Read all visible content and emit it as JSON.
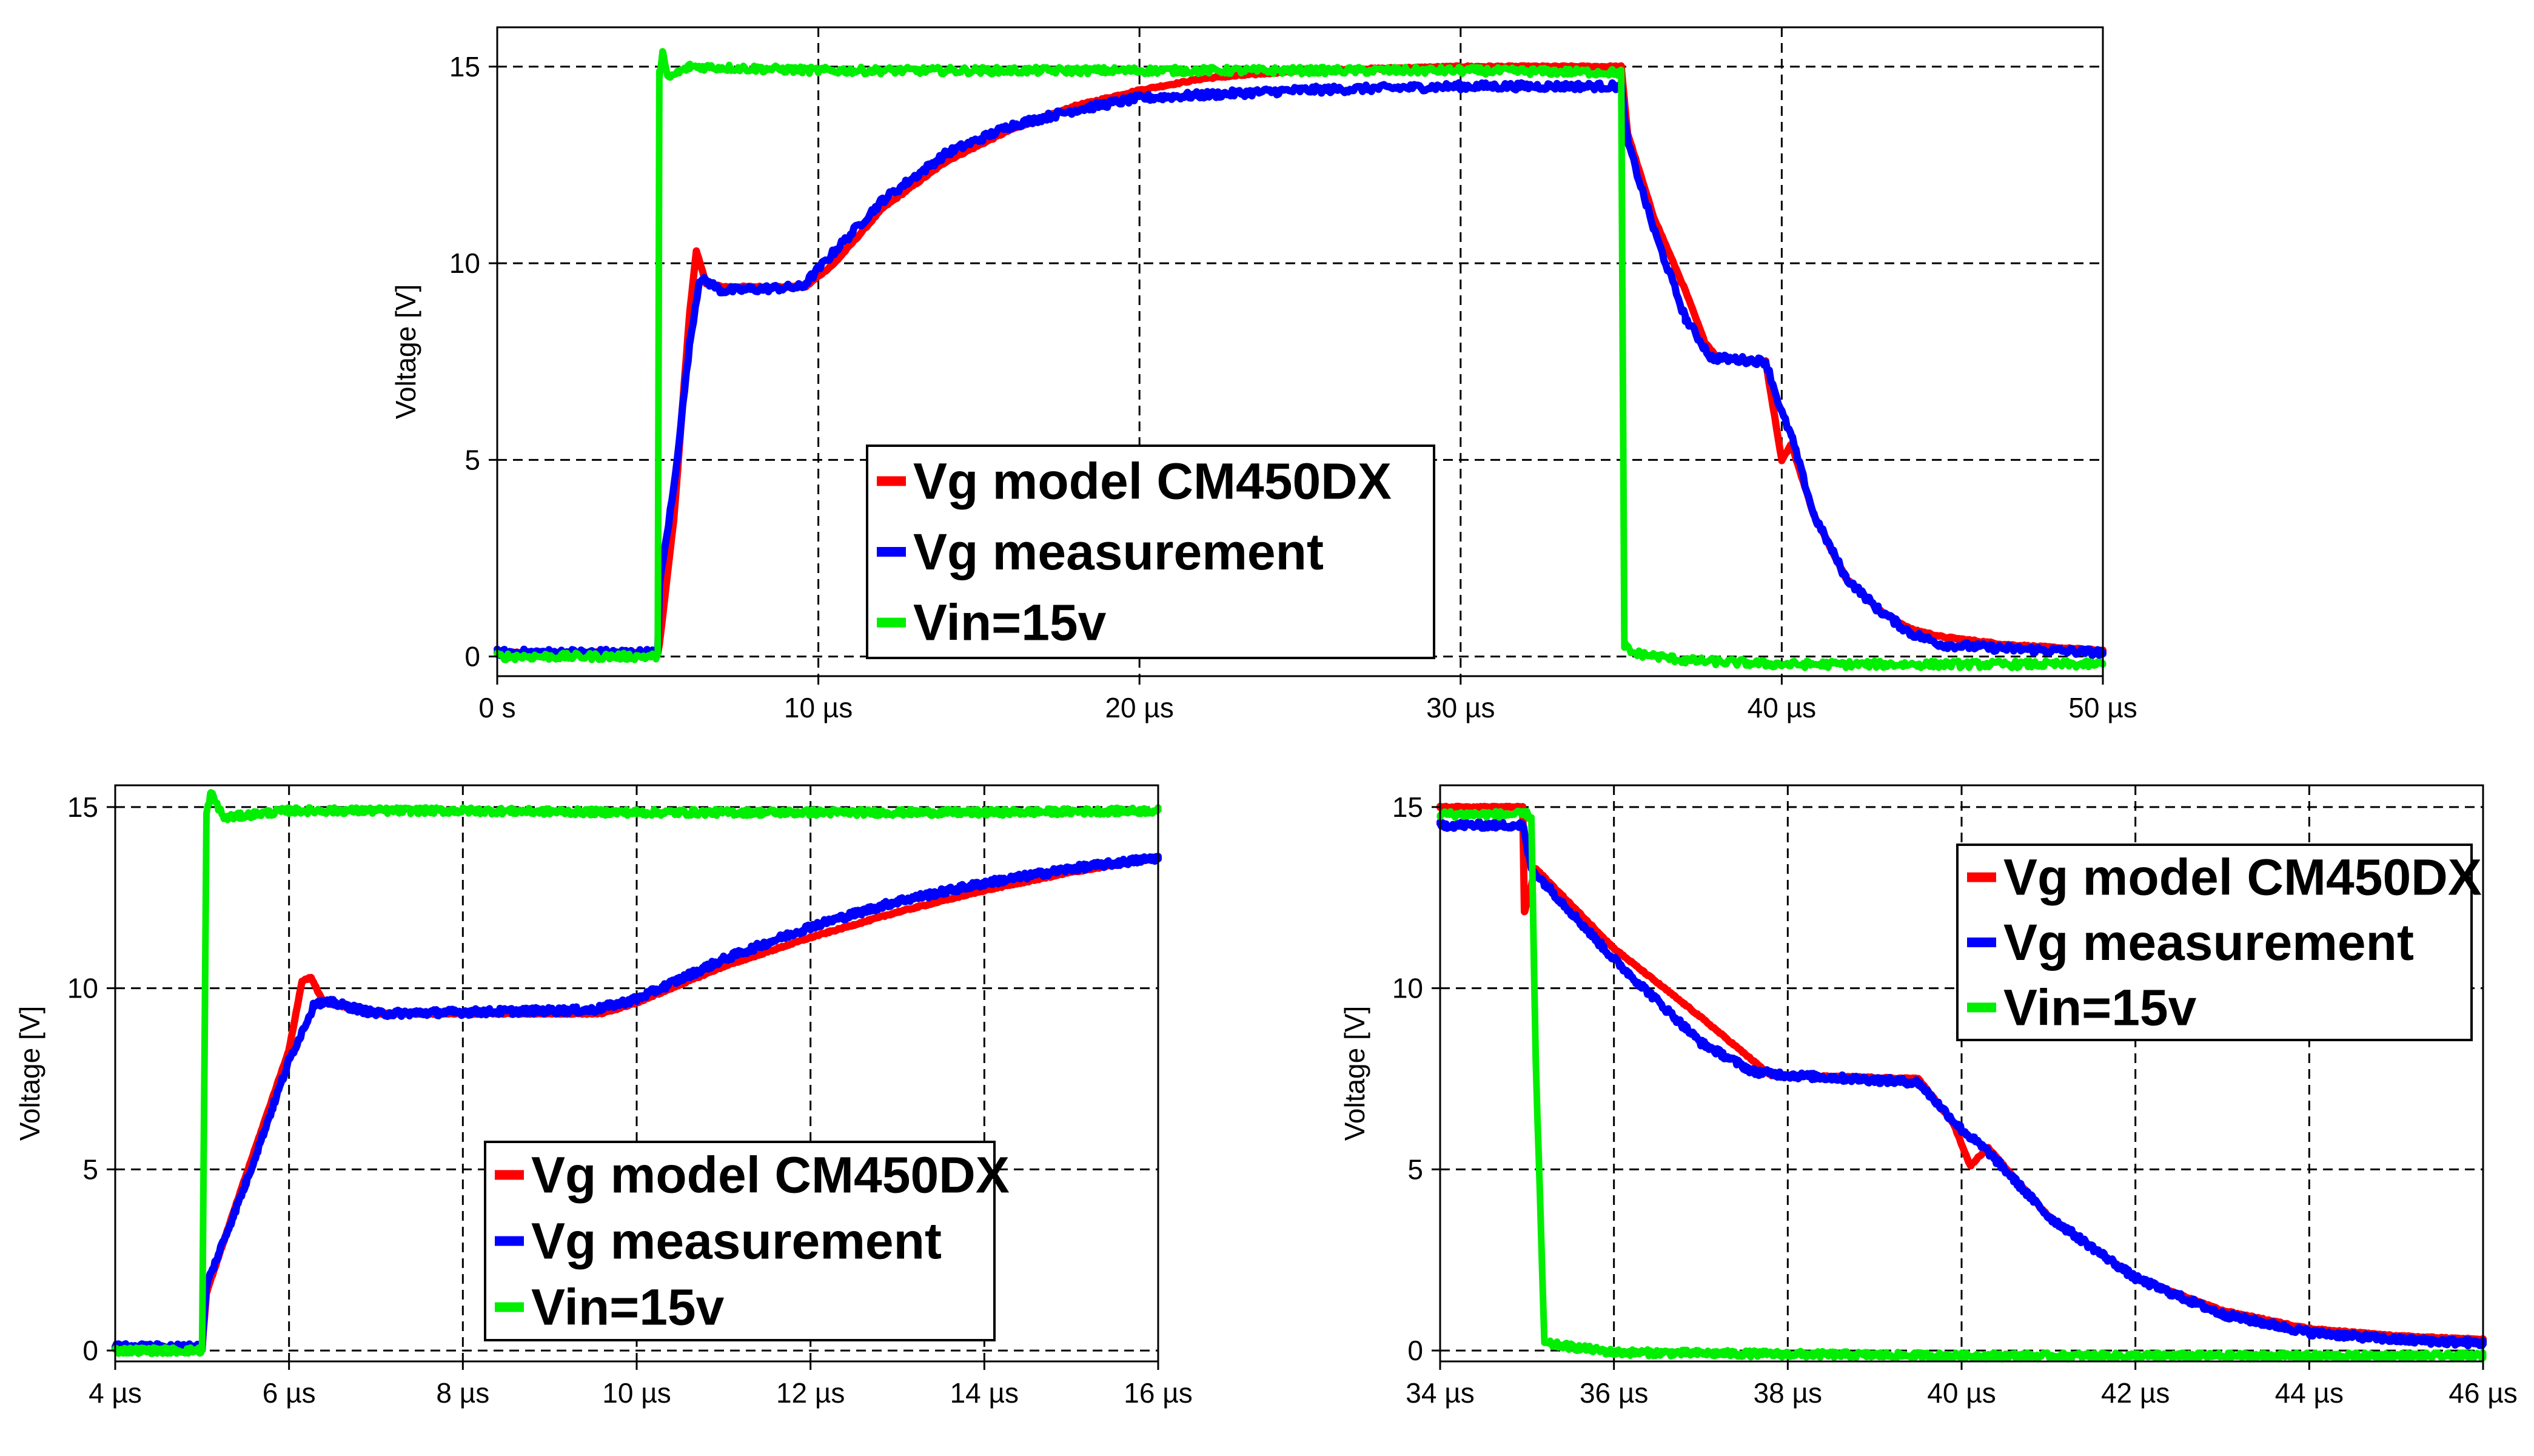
{
  "chart_data": [
    {
      "id": "top",
      "type": "line",
      "title": "",
      "xlabel": "",
      "ylabel": "Voltage [V]",
      "xlim": [
        0,
        50
      ],
      "ylim": [
        -0.5,
        16
      ],
      "xticks": [
        0,
        10,
        20,
        30,
        40,
        50
      ],
      "xtick_labels": [
        "0 s",
        "10 µs",
        "20 µs",
        "30 µs",
        "40 µs",
        "50 µs"
      ],
      "yticks": [
        0,
        5,
        10,
        15
      ],
      "ytick_labels": [
        "0",
        "5",
        "10",
        "15"
      ],
      "grid": true,
      "legend_position": "bottom-center",
      "series": [
        {
          "name": "Vg model CM450DX",
          "color": "#ff0000",
          "points": [
            [
              0,
              0.1
            ],
            [
              5,
              0.1
            ],
            [
              5.05,
              0.3
            ],
            [
              5.5,
              3.5
            ],
            [
              6.0,
              8.8
            ],
            [
              6.2,
              10.3
            ],
            [
              6.5,
              9.5
            ],
            [
              7,
              9.4
            ],
            [
              9.6,
              9.4
            ],
            [
              10.5,
              10.0
            ],
            [
              12,
              11.4
            ],
            [
              14,
              12.6
            ],
            [
              16,
              13.4
            ],
            [
              18,
              14.0
            ],
            [
              20,
              14.4
            ],
            [
              22,
              14.7
            ],
            [
              25,
              14.9
            ],
            [
              30,
              15.0
            ],
            [
              35,
              15.0
            ],
            [
              35.2,
              13.3
            ],
            [
              36,
              11.2
            ],
            [
              37,
              9.3
            ],
            [
              37.6,
              8.0
            ],
            [
              38,
              7.6
            ],
            [
              39.5,
              7.5
            ],
            [
              40,
              5.0
            ],
            [
              40.3,
              5.4
            ],
            [
              41,
              3.6
            ],
            [
              42,
              2.0
            ],
            [
              43,
              1.2
            ],
            [
              44,
              0.7
            ],
            [
              45,
              0.5
            ],
            [
              47,
              0.3
            ],
            [
              50,
              0.15
            ]
          ]
        },
        {
          "name": "Vg measurement",
          "color": "#0000ff",
          "points": [
            [
              0,
              0.1
            ],
            [
              5,
              0.1
            ],
            [
              5.05,
              1.8
            ],
            [
              5.5,
              4.3
            ],
            [
              6.0,
              8.0
            ],
            [
              6.3,
              9.6
            ],
            [
              6.6,
              9.5
            ],
            [
              7,
              9.3
            ],
            [
              9.5,
              9.4
            ],
            [
              10.5,
              10.3
            ],
            [
              12,
              11.6
            ],
            [
              14,
              12.8
            ],
            [
              16,
              13.5
            ],
            [
              18,
              13.9
            ],
            [
              20,
              14.2
            ],
            [
              25,
              14.4
            ],
            [
              30,
              14.5
            ],
            [
              35,
              14.5
            ],
            [
              35.2,
              13.1
            ],
            [
              36,
              10.9
            ],
            [
              37,
              8.6
            ],
            [
              37.8,
              7.6
            ],
            [
              39.5,
              7.5
            ],
            [
              40,
              6.2
            ],
            [
              40.3,
              5.6
            ],
            [
              41,
              3.6
            ],
            [
              42,
              2.0
            ],
            [
              43,
              1.2
            ],
            [
              44,
              0.6
            ],
            [
              45,
              0.3
            ],
            [
              47,
              0.2
            ],
            [
              50,
              0.1
            ]
          ]
        },
        {
          "name": "Vin=15v",
          "color": "#00ee00",
          "points": [
            [
              0,
              0
            ],
            [
              5,
              0
            ],
            [
              5.05,
              14.8
            ],
            [
              5.15,
              15.4
            ],
            [
              5.3,
              14.7
            ],
            [
              6,
              15.0
            ],
            [
              10,
              14.9
            ],
            [
              20,
              14.9
            ],
            [
              30,
              14.9
            ],
            [
              35,
              14.85
            ],
            [
              35.1,
              0.3
            ],
            [
              35.3,
              0.1
            ],
            [
              37,
              -0.1
            ],
            [
              40,
              -0.2
            ],
            [
              45,
              -0.2
            ],
            [
              50,
              -0.2
            ]
          ]
        }
      ]
    },
    {
      "id": "bottom-left",
      "type": "line",
      "title": "",
      "xlabel": "",
      "ylabel": "Voltage [V]",
      "xlim": [
        4,
        16
      ],
      "ylim": [
        -0.3,
        15.6
      ],
      "xticks": [
        4,
        6,
        8,
        10,
        12,
        14,
        16
      ],
      "xtick_labels": [
        "4 µs",
        "6 µs",
        "8 µs",
        "10 µs",
        "12 µs",
        "14 µs",
        "16 µs"
      ],
      "yticks": [
        0,
        5,
        10,
        15
      ],
      "ytick_labels": [
        "0",
        "5",
        "10",
        "15"
      ],
      "grid": true,
      "legend_position": "bottom-right",
      "series": [
        {
          "name": "Vg model CM450DX",
          "color": "#ff0000",
          "points": [
            [
              4,
              0.1
            ],
            [
              5,
              0.1
            ],
            [
              5.05,
              1.6
            ],
            [
              5.5,
              4.8
            ],
            [
              6,
              8.3
            ],
            [
              6.15,
              10.2
            ],
            [
              6.25,
              10.3
            ],
            [
              6.4,
              9.6
            ],
            [
              7,
              9.3
            ],
            [
              9.6,
              9.3
            ],
            [
              10,
              9.6
            ],
            [
              11,
              10.6
            ],
            [
              12,
              11.4
            ],
            [
              13,
              12.1
            ],
            [
              14,
              12.7
            ],
            [
              15,
              13.2
            ],
            [
              16,
              13.6
            ]
          ]
        },
        {
          "name": "Vg measurement",
          "color": "#0000ff",
          "points": [
            [
              4,
              0.1
            ],
            [
              5,
              0.1
            ],
            [
              5.05,
              1.8
            ],
            [
              5.5,
              4.6
            ],
            [
              6,
              8.0
            ],
            [
              6.3,
              9.6
            ],
            [
              6.5,
              9.6
            ],
            [
              7,
              9.3
            ],
            [
              9.5,
              9.4
            ],
            [
              10,
              9.7
            ],
            [
              11,
              10.8
            ],
            [
              12,
              11.7
            ],
            [
              13,
              12.4
            ],
            [
              14,
              12.9
            ],
            [
              15,
              13.3
            ],
            [
              16,
              13.6
            ]
          ]
        },
        {
          "name": "Vin=15v",
          "color": "#00ee00",
          "points": [
            [
              4,
              0
            ],
            [
              5,
              0
            ],
            [
              5.05,
              14.8
            ],
            [
              5.1,
              15.4
            ],
            [
              5.25,
              14.7
            ],
            [
              5.6,
              14.8
            ],
            [
              6,
              14.9
            ],
            [
              8,
              14.9
            ],
            [
              10,
              14.85
            ],
            [
              12,
              14.85
            ],
            [
              14,
              14.85
            ],
            [
              16,
              14.9
            ]
          ]
        }
      ]
    },
    {
      "id": "bottom-right",
      "type": "line",
      "title": "",
      "xlabel": "",
      "ylabel": "Voltage [V]",
      "xlim": [
        34,
        46
      ],
      "ylim": [
        -0.3,
        15.6
      ],
      "xticks": [
        34,
        36,
        38,
        40,
        42,
        44,
        46
      ],
      "xtick_labels": [
        "34 µs",
        "36 µs",
        "38 µs",
        "40 µs",
        "42 µs",
        "44 µs",
        "46 µs"
      ],
      "yticks": [
        0,
        5,
        10,
        15
      ],
      "ytick_labels": [
        "0",
        "5",
        "10",
        "15"
      ],
      "grid": true,
      "legend_position": "top-right",
      "series": [
        {
          "name": "Vg model CM450DX",
          "color": "#ff0000",
          "points": [
            [
              34,
              15.0
            ],
            [
              34.95,
              15.0
            ],
            [
              34.97,
              12.1
            ],
            [
              35.1,
              13.3
            ],
            [
              36,
              11.1
            ],
            [
              37,
              9.2
            ],
            [
              37.8,
              7.6
            ],
            [
              39.5,
              7.5
            ],
            [
              39.9,
              6.3
            ],
            [
              40.1,
              5.1
            ],
            [
              40.3,
              5.6
            ],
            [
              41,
              3.7
            ],
            [
              42,
              2.0
            ],
            [
              43,
              1.1
            ],
            [
              44,
              0.6
            ],
            [
              45,
              0.4
            ],
            [
              46,
              0.3
            ]
          ]
        },
        {
          "name": "Vg measurement",
          "color": "#0000ff",
          "points": [
            [
              34,
              14.5
            ],
            [
              34.95,
              14.5
            ],
            [
              35.05,
              13.3
            ],
            [
              36,
              10.8
            ],
            [
              37,
              8.5
            ],
            [
              37.6,
              7.7
            ],
            [
              38,
              7.6
            ],
            [
              39.5,
              7.4
            ],
            [
              40,
              6.1
            ],
            [
              40.3,
              5.5
            ],
            [
              41,
              3.7
            ],
            [
              42,
              2.0
            ],
            [
              43,
              1.0
            ],
            [
              44,
              0.5
            ],
            [
              45,
              0.3
            ],
            [
              46,
              0.2
            ]
          ]
        },
        {
          "name": "Vin=15v",
          "color": "#00ee00",
          "points": [
            [
              34,
              14.8
            ],
            [
              35,
              14.8
            ],
            [
              35.05,
              14.7
            ],
            [
              35.1,
              8.0
            ],
            [
              35.2,
              0.2
            ],
            [
              36,
              -0.05
            ],
            [
              38,
              -0.1
            ],
            [
              40,
              -0.15
            ],
            [
              42,
              -0.15
            ],
            [
              44,
              -0.15
            ],
            [
              46,
              -0.15
            ]
          ]
        }
      ]
    }
  ]
}
